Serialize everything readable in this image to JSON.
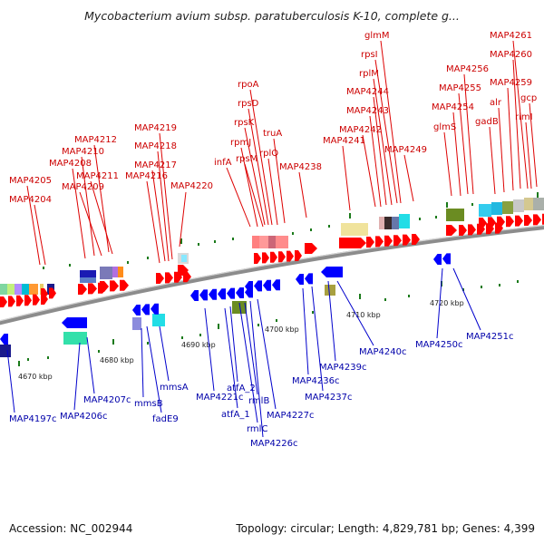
{
  "title": "Mycobacterium avium subsp. paratuberculosis K-10, complete g...",
  "accession": "Accession: NC_002944",
  "topology": "Topology: circular; Length: 4,829,781 bp; Genes: 4,399",
  "colors": {
    "forward": "#ff0000",
    "reverse": "#0000ff",
    "forward_label": "#cc0000",
    "reverse_label": "#0000aa",
    "backbone": "#9a9a9a"
  },
  "ticks": [
    "4670 kbp",
    "4680 kbp",
    "4690 kbp",
    "4700 kbp",
    "4710 kbp",
    "4720 kbp"
  ],
  "forward_labels": [
    "MAP4204",
    "MAP4205",
    "MAP4208",
    "MAP4209",
    "MAP4210",
    "MAP4211",
    "MAP4212",
    "MAP4216",
    "MAP4217",
    "MAP4218",
    "MAP4219",
    "MAP4220",
    "infA",
    "rpmJ",
    "rpsM",
    "rpsK",
    "rpsD",
    "rpoA",
    "rplQ",
    "truA",
    "MAP4238",
    "MAP4241",
    "MAP4242",
    "MAP4243",
    "MAP4244",
    "rplM",
    "rpsI",
    "glmM",
    "MAP4249",
    "glmS",
    "MAP4254",
    "MAP4255",
    "MAP4256",
    "gadB",
    "alr",
    "MAP4259",
    "MAP4260",
    "MAP4261",
    "rimI",
    "gcp"
  ],
  "reverse_labels": [
    "MAP4197c",
    "MAP4206c",
    "MAP4207c",
    "mmsB",
    "fadE9",
    "mmsA",
    "MAP4221c",
    "atfA_2",
    "atfA_1",
    "rmlC",
    "rmlB",
    "MAP4226c",
    "MAP4227c",
    "MAP4236c",
    "MAP4237c",
    "MAP4239c",
    "MAP4240c",
    "MAP4250c",
    "MAP4251c"
  ]
}
